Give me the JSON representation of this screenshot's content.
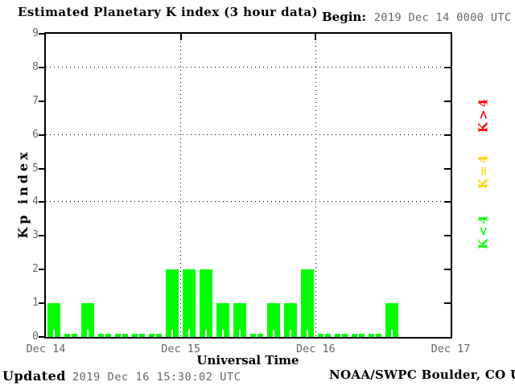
{
  "header": {
    "title": "Estimated Planetary K index (3 hour data)",
    "begin_label": "Begin:",
    "begin_value": "2019 Dec 14 0000 UTC"
  },
  "legend": {
    "items": [
      {
        "label": "K>4",
        "color": "#ff0000"
      },
      {
        "label": "K=4",
        "color": "#ffd200"
      },
      {
        "label": "K<4",
        "color": "#00ff00"
      }
    ]
  },
  "footer": {
    "updated_label": "Updated",
    "updated_value": "2019 Dec 16 15:30:02 UTC",
    "credit": "NOAA/SWPC Boulder, CO USA"
  },
  "chart_data": {
    "type": "bar",
    "title": "Estimated Planetary K index (3 hour data)",
    "begin": "2019 Dec 14 0000 UTC",
    "xlabel": "Universal Time",
    "ylabel": "Kp index",
    "ylim": [
      0,
      9
    ],
    "y_ticks": [
      0,
      1,
      2,
      3,
      4,
      5,
      6,
      7,
      8,
      9
    ],
    "gridlines_y": [
      4,
      6,
      8
    ],
    "grid_style": "dotted",
    "x_tick_labels": [
      "Dec 14",
      "Dec 15",
      "Dec 16",
      "Dec 17"
    ],
    "days": 3,
    "slots_per_day": 8,
    "interval_hours": 3,
    "bar_color": "#00ff00",
    "values": [
      1,
      0,
      1,
      0,
      0,
      0,
      0,
      2,
      2,
      2,
      1,
      1,
      0,
      1,
      1,
      2,
      0,
      0,
      0,
      0,
      1
    ],
    "legend_position": "right"
  }
}
